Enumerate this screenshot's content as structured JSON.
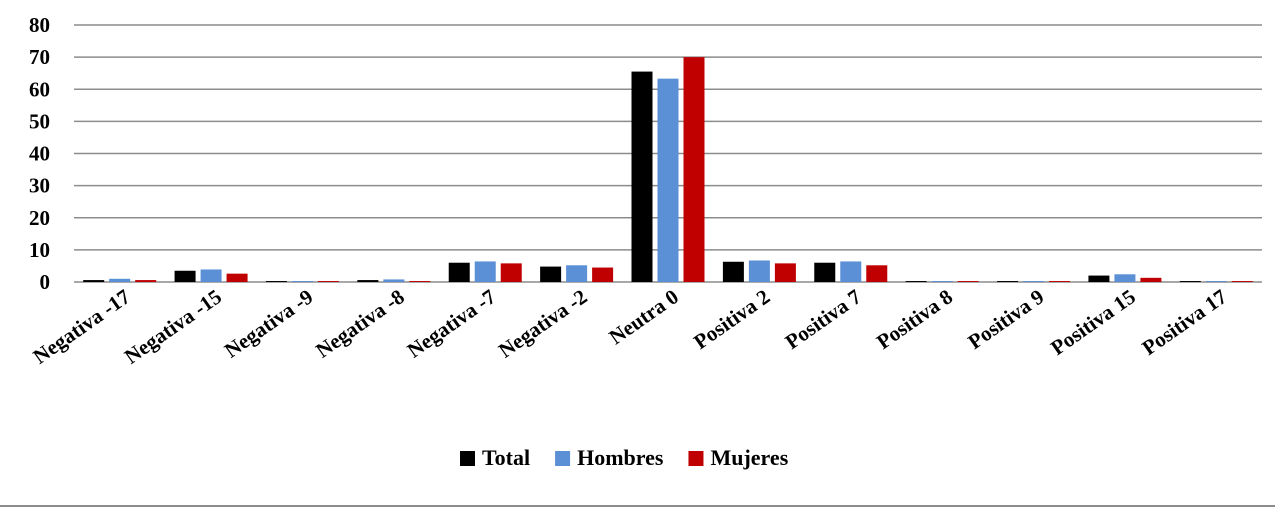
{
  "chart_data": {
    "type": "bar",
    "title": "",
    "xlabel": "",
    "ylabel": "",
    "ylim": [
      0,
      80
    ],
    "yticks": [
      0,
      10,
      20,
      30,
      40,
      50,
      60,
      70,
      80
    ],
    "grid": true,
    "legend_position": "bottom",
    "categories": [
      "Negativa -17",
      "Negativa -15",
      "Negativa -9",
      "Negativa -8",
      "Negativa -7",
      "Negativa -2",
      "Neutra 0",
      "Positiva 2",
      "Positiva 7",
      "Positiva 8",
      "Positiva 9",
      "Positiva 15",
      "Positiva 17"
    ],
    "series": [
      {
        "name": "Total",
        "color": "#000000",
        "values": [
          0.6,
          3.5,
          0.3,
          0.6,
          6.0,
          4.8,
          65.5,
          6.3,
          6.0,
          0.3,
          0.3,
          2.0,
          0.3
        ]
      },
      {
        "name": "Hombres",
        "color": "#5b8fd6",
        "values": [
          1.0,
          3.9,
          0.3,
          0.8,
          6.4,
          5.2,
          63.3,
          6.7,
          6.4,
          0.3,
          0.3,
          2.4,
          0.3
        ]
      },
      {
        "name": "Mujeres",
        "color": "#c00000",
        "values": [
          0.6,
          2.6,
          0.3,
          0.3,
          5.8,
          4.5,
          70.0,
          5.8,
          5.2,
          0.3,
          0.3,
          1.3,
          0.3
        ]
      }
    ]
  }
}
